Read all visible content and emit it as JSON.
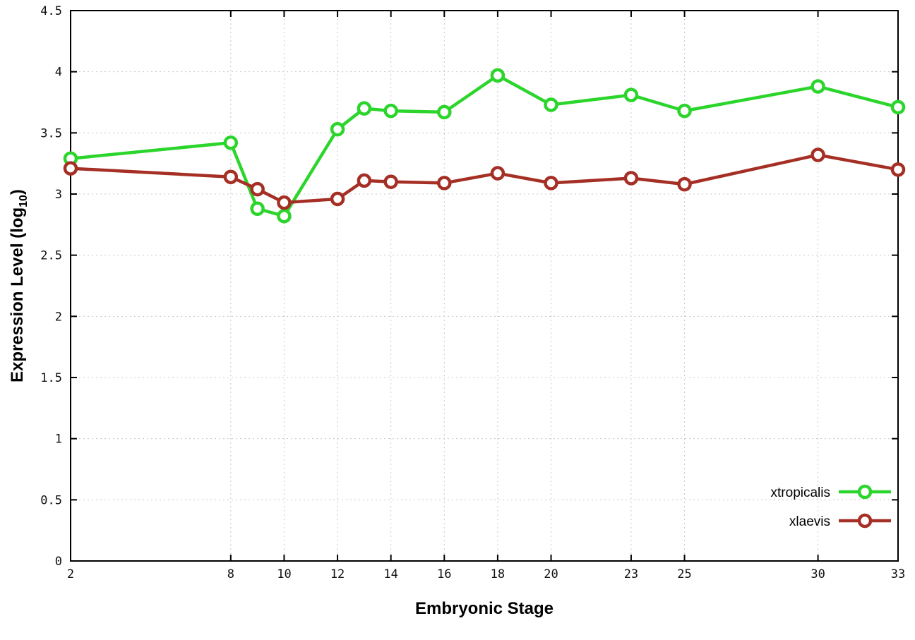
{
  "chart": {
    "xlabel": "Embryonic Stage",
    "ylabel": {
      "prefix": "Expression Level (log",
      "sub": "10",
      "suffix": ")"
    }
  },
  "chart_data": {
    "type": "line",
    "title": "",
    "xlabel": "Embryonic Stage",
    "ylabel": "Expression Level (log10)",
    "x": [
      2,
      8,
      9,
      10,
      12,
      13,
      14,
      16,
      18,
      20,
      23,
      25,
      30,
      33
    ],
    "series": [
      {
        "name": "xtropicalis",
        "color": "#2bd52b",
        "values": [
          3.29,
          3.42,
          2.88,
          2.82,
          3.53,
          3.7,
          3.68,
          3.67,
          3.97,
          3.73,
          3.81,
          3.68,
          3.88,
          3.71
        ]
      },
      {
        "name": "xlaevis",
        "color": "#a52f25",
        "values": [
          3.21,
          3.14,
          3.04,
          2.93,
          2.96,
          3.11,
          3.1,
          3.09,
          3.17,
          3.09,
          3.13,
          3.08,
          3.32,
          3.2
        ]
      }
    ],
    "xticks": [
      2,
      8,
      10,
      12,
      14,
      16,
      18,
      20,
      23,
      25,
      30,
      33
    ],
    "yticks": [
      0,
      0.5,
      1,
      1.5,
      2,
      2.5,
      3,
      3.5,
      4,
      4.5
    ],
    "xlim": [
      2,
      33
    ],
    "ylim": [
      0,
      4.5
    ],
    "grid": true,
    "grid_color": "#c8c8c8",
    "border_color": "#000000",
    "legend_position": "inside bottom-right",
    "marker": "open-circle"
  }
}
